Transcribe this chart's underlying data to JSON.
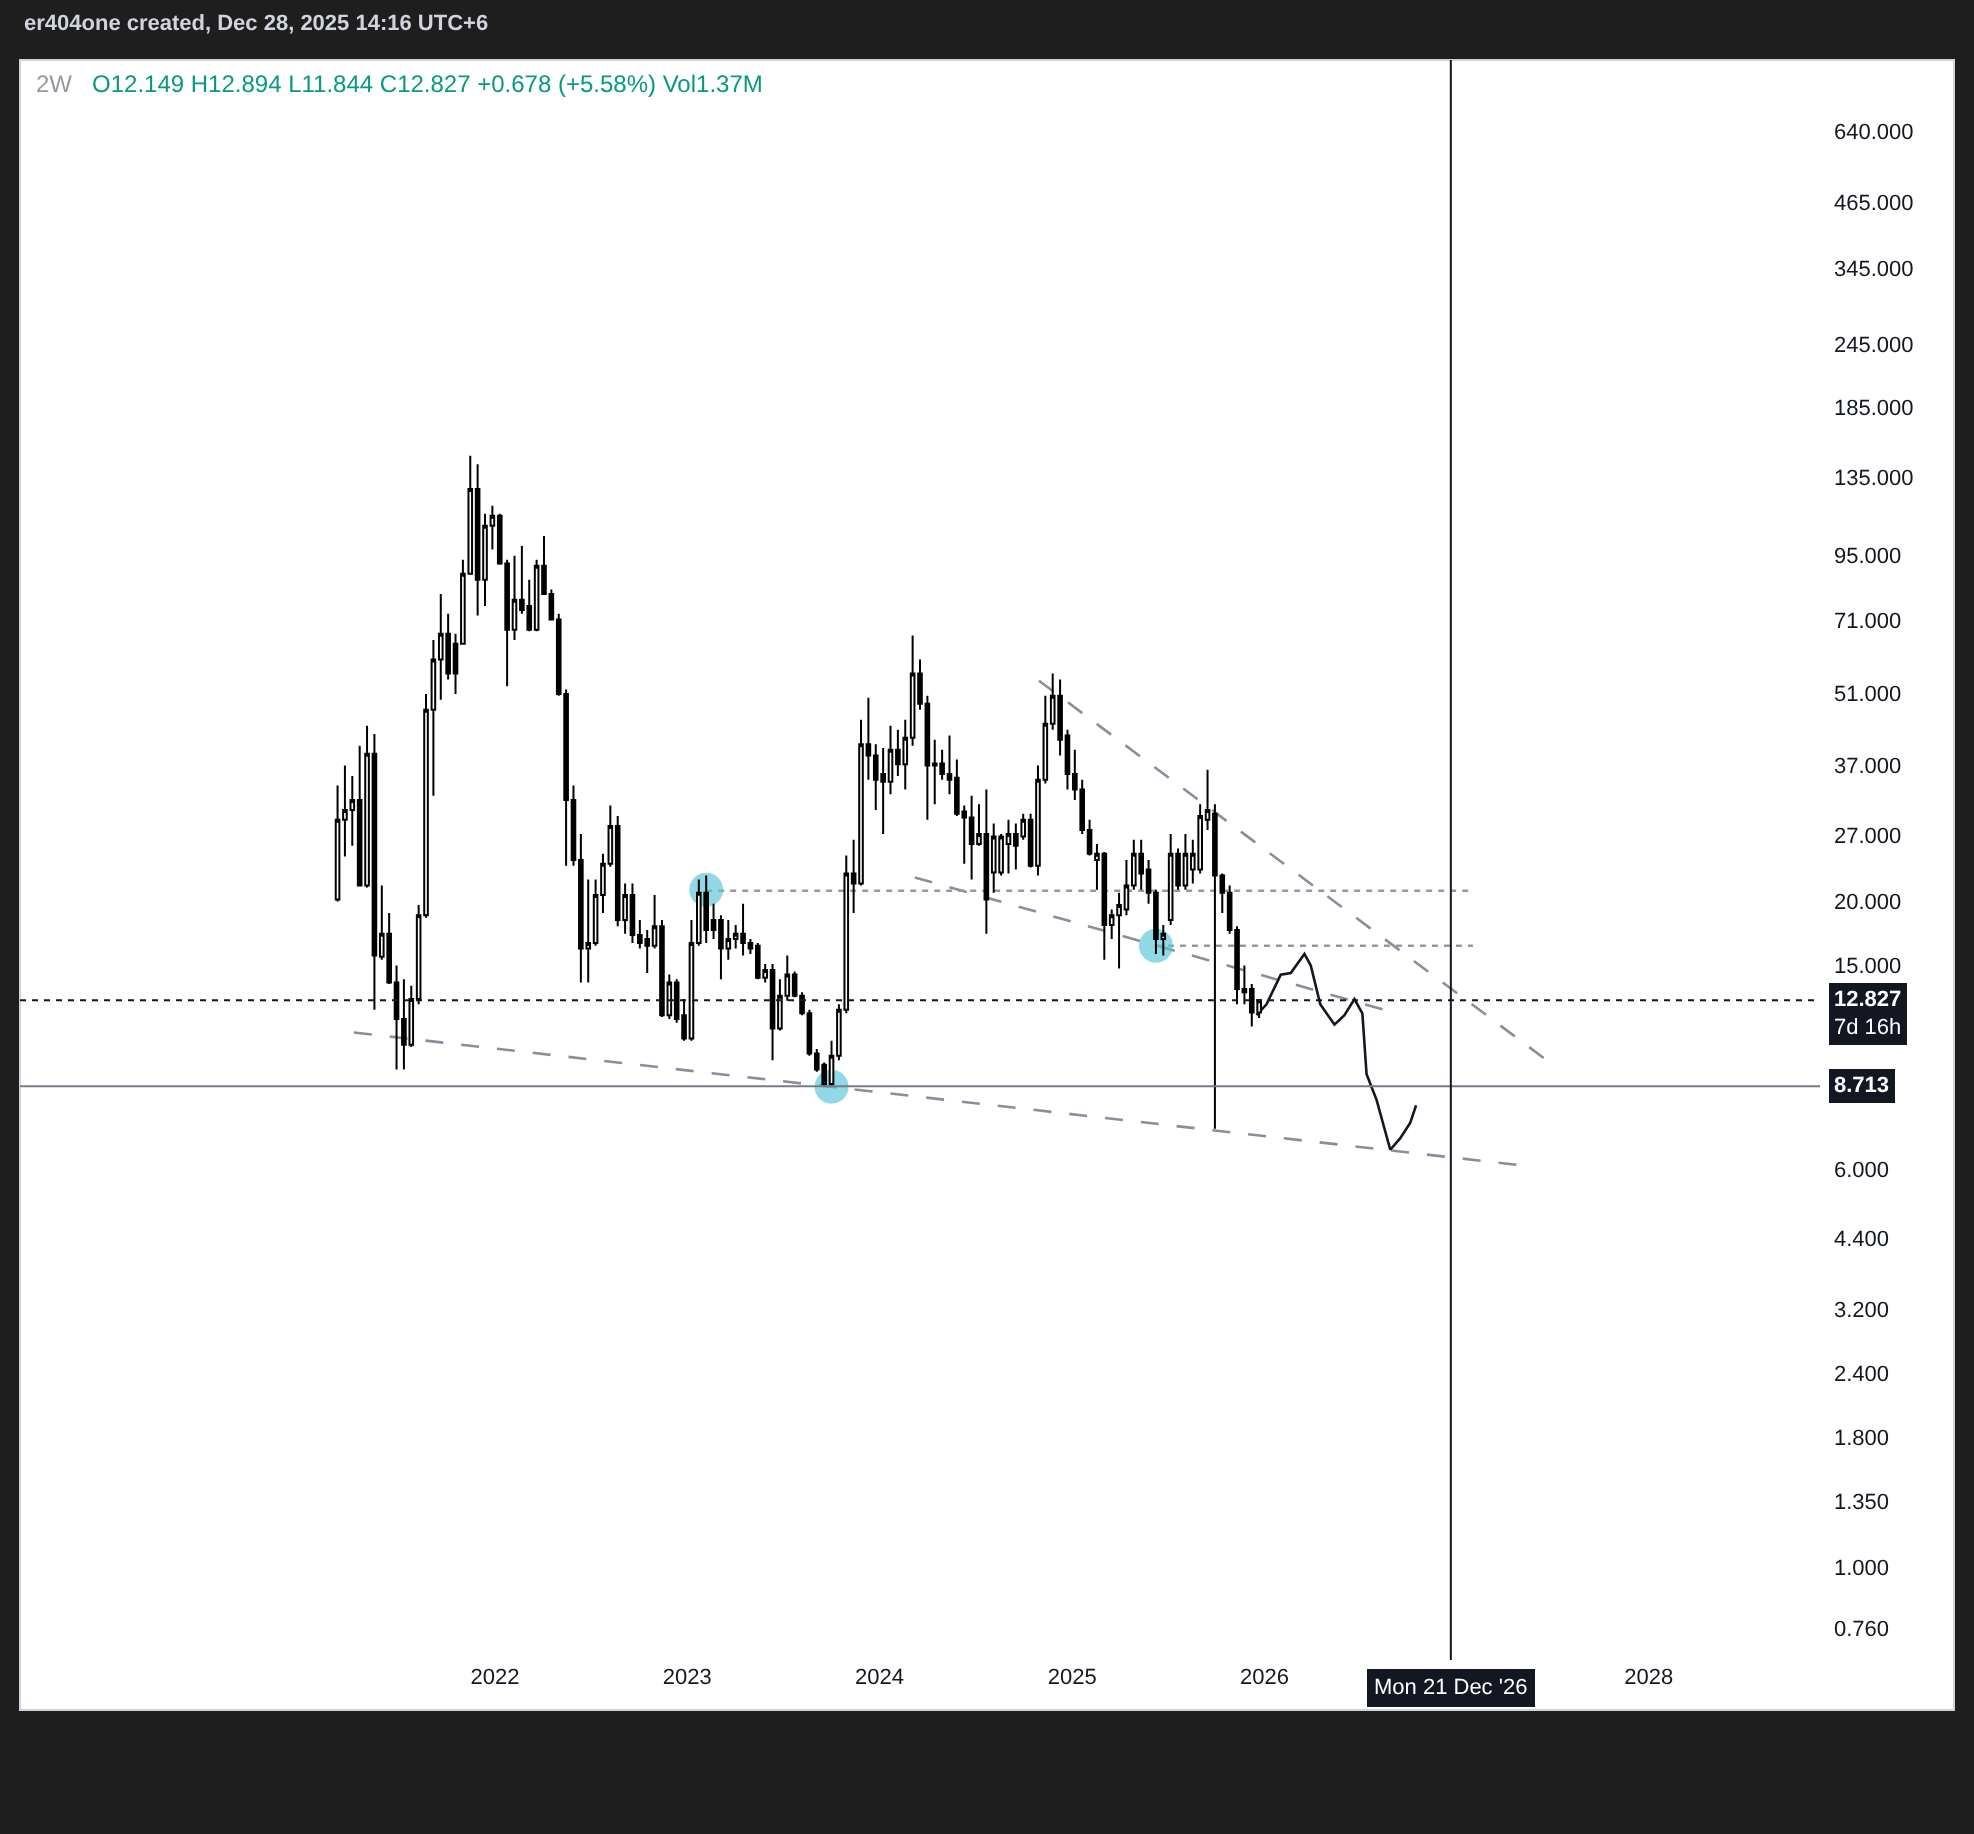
{
  "chart_data": {
    "type": "candlestick",
    "title": "2W",
    "subtitle": "O12.149 H12.894 L11.844 C12.827 +0.678 (+5.58%) Vol1.37M",
    "color": "#000000",
    "x": [
      "2021-03-08",
      "2021-03-22",
      "2021-04-05",
      "2021-04-19",
      "2021-05-03",
      "2021-05-17",
      "2021-05-31",
      "2021-06-14",
      "2021-06-28",
      "2021-07-12",
      "2021-07-26",
      "2021-08-09",
      "2021-08-23",
      "2021-09-06",
      "2021-09-20",
      "2021-10-04",
      "2021-10-18",
      "2021-11-01",
      "2021-11-15",
      "2021-11-29",
      "2021-12-13",
      "2021-12-27",
      "2022-01-10",
      "2022-01-24",
      "2022-02-07",
      "2022-02-21",
      "2022-03-07",
      "2022-03-21",
      "2022-04-04",
      "2022-04-18",
      "2022-05-02",
      "2022-05-16",
      "2022-05-30",
      "2022-06-13",
      "2022-06-27",
      "2022-07-11",
      "2022-07-25",
      "2022-08-08",
      "2022-08-22",
      "2022-09-05",
      "2022-09-19",
      "2022-10-03",
      "2022-10-17",
      "2022-10-31",
      "2022-11-14",
      "2022-11-28",
      "2022-12-12",
      "2022-12-26",
      "2023-01-09",
      "2023-01-23",
      "2023-02-06",
      "2023-02-20",
      "2023-03-06",
      "2023-03-20",
      "2023-04-03",
      "2023-04-17",
      "2023-05-01",
      "2023-05-15",
      "2023-05-29",
      "2023-06-12",
      "2023-06-26",
      "2023-07-10",
      "2023-07-24",
      "2023-08-07",
      "2023-08-21",
      "2023-09-04",
      "2023-09-18",
      "2023-10-02",
      "2023-10-16",
      "2023-10-30",
      "2023-11-13",
      "2023-11-27",
      "2023-12-11",
      "2023-12-25",
      "2024-01-08",
      "2024-01-22",
      "2024-02-05",
      "2024-02-19",
      "2024-03-04",
      "2024-03-18",
      "2024-04-01",
      "2024-04-15",
      "2024-04-29",
      "2024-05-13",
      "2024-05-27",
      "2024-06-10",
      "2024-06-24",
      "2024-07-08",
      "2024-07-22",
      "2024-08-05",
      "2024-08-19",
      "2024-09-02",
      "2024-09-16",
      "2024-09-30",
      "2024-10-14",
      "2024-10-28",
      "2024-11-11",
      "2024-11-25",
      "2024-12-09",
      "2024-12-23",
      "2025-01-06",
      "2025-01-20",
      "2025-02-03",
      "2025-02-17",
      "2025-03-03",
      "2025-03-17",
      "2025-03-31",
      "2025-04-14",
      "2025-04-28",
      "2025-05-12",
      "2025-05-26",
      "2025-06-09",
      "2025-06-23",
      "2025-07-07",
      "2025-07-21",
      "2025-08-04",
      "2025-08-18",
      "2025-09-01",
      "2025-09-15",
      "2025-09-29",
      "2025-10-13",
      "2025-10-27",
      "2025-11-10",
      "2025-11-24",
      "2025-12-08",
      "2025-12-22"
    ],
    "ohlc": [
      [
        20.2,
        33.7,
        20.0,
        28.9
      ],
      [
        28.9,
        36.9,
        24.5,
        30.2
      ],
      [
        30.2,
        35.2,
        25.7,
        31.6
      ],
      [
        31.6,
        40.3,
        21.4,
        21.5
      ],
      [
        21.5,
        44.1,
        21.3,
        38.9
      ],
      [
        38.9,
        42.5,
        12.3,
        15.7
      ],
      [
        15.6,
        21.5,
        15.4,
        17.3
      ],
      [
        17.3,
        19.0,
        13.8,
        13.9
      ],
      [
        13.9,
        15.0,
        9.4,
        11.8
      ],
      [
        11.8,
        14.1,
        9.4,
        10.5
      ],
      [
        10.5,
        13.7,
        10.4,
        12.9
      ],
      [
        12.9,
        19.7,
        12.6,
        18.8
      ],
      [
        18.8,
        50.9,
        18.6,
        47.4
      ],
      [
        47.4,
        64.9,
        32.2,
        59.4
      ],
      [
        59.4,
        79.8,
        49.6,
        66.7
      ],
      [
        66.7,
        73.0,
        54.3,
        55.8
      ],
      [
        63.8,
        66.7,
        50.9,
        55.8
      ],
      [
        63.8,
        93.1,
        63.5,
        87.4
      ],
      [
        87.4,
        148.6,
        87.0,
        128
      ],
      [
        128,
        143,
        72.4,
        85.1
      ],
      [
        85.1,
        114.5,
        75.6,
        108.4
      ],
      [
        108.4,
        118.6,
        97.4,
        113.4
      ],
      [
        113.4,
        114.5,
        91.0,
        91.5
      ],
      [
        91.5,
        93.1,
        52.7,
        67.9
      ],
      [
        67.9,
        94.8,
        64.9,
        77.7
      ],
      [
        77.7,
        99.0,
        73.0,
        74.2
      ],
      [
        75.6,
        85.1,
        67.5,
        67.9
      ],
      [
        67.9,
        93.1,
        67.5,
        90.6
      ],
      [
        90.6,
        103.6,
        79.5,
        79.8
      ],
      [
        79.8,
        81.4,
        70.8,
        71.1
      ],
      [
        71.1,
        73.0,
        50.5,
        50.9
      ],
      [
        50.9,
        51.9,
        23.5,
        31.6
      ],
      [
        31.6,
        33.7,
        23.5,
        24.1
      ],
      [
        24.1,
        27.1,
        13.9,
        16.2
      ],
      [
        16.2,
        22.1,
        13.9,
        16.6
      ],
      [
        16.6,
        22.1,
        16.4,
        20.6
      ],
      [
        20.6,
        24.8,
        19.0,
        23.7
      ],
      [
        23.7,
        30.8,
        23.4,
        28.1
      ],
      [
        28.1,
        29.4,
        17.9,
        18.4
      ],
      [
        18.4,
        21.7,
        17.3,
        20.6
      ],
      [
        20.6,
        21.7,
        16.6,
        17.2
      ],
      [
        17.2,
        18.4,
        16.2,
        16.6
      ],
      [
        16.9,
        17.6,
        14.5,
        16.4
      ],
      [
        16.4,
        20.6,
        16.2,
        17.9
      ],
      [
        17.9,
        18.4,
        11.9,
        12.0
      ],
      [
        12.0,
        14.4,
        11.8,
        13.9
      ],
      [
        13.9,
        14.1,
        11.6,
        11.8
      ],
      [
        12.0,
        12.9,
        10.7,
        10.8
      ],
      [
        10.8,
        18.4,
        10.7,
        16.6
      ],
      [
        16.6,
        22.1,
        16.4,
        20.8
      ],
      [
        20.8,
        22.5,
        16.6,
        17.6
      ],
      [
        18.4,
        19.8,
        16.9,
        17.6
      ],
      [
        18.4,
        18.8,
        14.1,
        16.2
      ],
      [
        16.2,
        18.4,
        15.4,
        16.9
      ],
      [
        16.9,
        18.0,
        16.2,
        17.3
      ],
      [
        17.3,
        19.8,
        15.7,
        16.6
      ],
      [
        16.6,
        16.9,
        15.8,
        16.2
      ],
      [
        16.4,
        16.6,
        14.1,
        14.2
      ],
      [
        14.2,
        15.1,
        13.9,
        14.7
      ],
      [
        14.7,
        15.1,
        9.8,
        11.3
      ],
      [
        11.3,
        14.1,
        11.2,
        13.1
      ],
      [
        13.1,
        15.7,
        12.8,
        14.4
      ],
      [
        14.4,
        14.6,
        13.0,
        13.1
      ],
      [
        13.1,
        13.3,
        12.0,
        12.1
      ],
      [
        12.1,
        12.3,
        10.0,
        10.1
      ],
      [
        10.1,
        10.3,
        9.3,
        9.4
      ],
      [
        9.6,
        9.7,
        8.7,
        8.8
      ],
      [
        8.8,
        10.7,
        8.7,
        10.0
      ],
      [
        10.0,
        12.6,
        9.8,
        12.3
      ],
      [
        12.3,
        24.6,
        12.1,
        22.7
      ],
      [
        22.7,
        26.4,
        19.0,
        21.7
      ],
      [
        21.7,
        45.3,
        21.5,
        40.6
      ],
      [
        40.6,
        50.0,
        34.6,
        38.6
      ],
      [
        38.6,
        40.6,
        30.2,
        34.6
      ],
      [
        35.5,
        39.9,
        27.1,
        34.3
      ],
      [
        34.3,
        44.1,
        32.4,
        39.6
      ],
      [
        39.6,
        43.3,
        35.2,
        37.1
      ],
      [
        37.1,
        45.3,
        33.1,
        41.8
      ],
      [
        41.8,
        66.2,
        40.3,
        55.8
      ],
      [
        55.8,
        59.4,
        47.4,
        48.7
      ],
      [
        48.7,
        50.5,
        28.9,
        36.9
      ],
      [
        37.2,
        41.4,
        31.0,
        36.9
      ],
      [
        37.2,
        39.6,
        34.6,
        35.5
      ],
      [
        35.5,
        42.2,
        32.4,
        34.6
      ],
      [
        34.9,
        37.9,
        29.4,
        29.7
      ],
      [
        30.0,
        30.8,
        23.7,
        29.2
      ],
      [
        29.2,
        32.2,
        22.1,
        25.9
      ],
      [
        25.9,
        31.0,
        25.7,
        27.1
      ],
      [
        27.1,
        33.1,
        17.3,
        20.2
      ],
      [
        22.8,
        28.4,
        20.8,
        26.8
      ],
      [
        22.8,
        27.1,
        22.5,
        26.8
      ],
      [
        25.9,
        28.9,
        22.7,
        27.1
      ],
      [
        27.1,
        28.4,
        23.1,
        25.7
      ],
      [
        26.8,
        29.7,
        26.4,
        28.9
      ],
      [
        28.9,
        29.7,
        23.3,
        23.5
      ],
      [
        23.5,
        36.9,
        22.5,
        34.6
      ],
      [
        34.6,
        50.5,
        34.0,
        44.5
      ],
      [
        44.5,
        55.8,
        43.3,
        50.5
      ],
      [
        50.5,
        54.3,
        38.6,
        41.4
      ],
      [
        42.2,
        43.3,
        33.1,
        35.5
      ],
      [
        35.5,
        39.6,
        31.6,
        33.1
      ],
      [
        33.1,
        34.6,
        27.1,
        27.6
      ],
      [
        27.6,
        28.9,
        24.6,
        24.8
      ],
      [
        24.1,
        25.9,
        21.1,
        24.8
      ],
      [
        24.8,
        25.0,
        15.4,
        18.0
      ],
      [
        18.0,
        19.3,
        16.9,
        18.8
      ],
      [
        18.8,
        20.8,
        14.8,
        19.7
      ],
      [
        19.3,
        24.1,
        18.8,
        21.5
      ],
      [
        21.5,
        26.4,
        21.1,
        24.8
      ],
      [
        24.8,
        26.4,
        21.1,
        22.7
      ],
      [
        23.1,
        24.1,
        19.8,
        20.8
      ],
      [
        20.8,
        21.1,
        15.8,
        16.9
      ],
      [
        16.9,
        18.0,
        15.7,
        17.3
      ],
      [
        18.4,
        27.1,
        18.0,
        24.8
      ],
      [
        24.8,
        25.4,
        21.1,
        21.5
      ],
      [
        21.5,
        27.1,
        21.1,
        24.8
      ],
      [
        23.1,
        26.4,
        21.7,
        24.8
      ],
      [
        23.1,
        31.0,
        22.7,
        29.4
      ],
      [
        28.9,
        36.2,
        27.6,
        30.2
      ],
      [
        29.7,
        31.0,
        7.2,
        22.5
      ],
      [
        22.5,
        22.7,
        19.0,
        20.8
      ],
      [
        20.8,
        21.5,
        17.3,
        17.6
      ],
      [
        17.6,
        17.9,
        12.6,
        13.5
      ],
      [
        13.3,
        15.0,
        12.6,
        13.5
      ],
      [
        13.5,
        13.8,
        11.4,
        12.149
      ],
      [
        12.149,
        12.894,
        11.844,
        12.827
      ]
    ],
    "series": [
      {
        "type": "line",
        "color": "#8a8e99",
        "line_style": "dashed",
        "x": [
          "2021-04-08",
          "2027-05-08"
        ],
        "values": [
          11.1,
          6.1
        ]
      },
      {
        "type": "line",
        "color": "#8a8e99",
        "line_style": "dashed",
        "x": [
          "2024-03-08",
          "2026-08-28"
        ],
        "values": [
          22.3,
          12.2
        ]
      },
      {
        "type": "line",
        "color": "#8a8e99",
        "line_style": "dashed",
        "x": [
          "2024-10-30",
          "2027-06-21"
        ],
        "values": [
          54,
          9.8
        ]
      },
      {
        "type": "line",
        "color": "#9598a1",
        "line_style": "dotted",
        "x": [
          "2023-02-06",
          "2027-02-01"
        ],
        "values": [
          21.0,
          21.0
        ]
      },
      {
        "type": "line",
        "color": "#9598a1",
        "line_style": "dotted",
        "x": [
          "2025-06-09",
          "2027-02-01"
        ],
        "values": [
          16.4,
          16.4
        ]
      },
      {
        "type": "line",
        "color": "#131722",
        "line_style": "solid",
        "x": [
          "2025-12-17",
          "2026-01-05",
          "2026-02-01",
          "2026-02-20",
          "2026-03-18",
          "2026-03-30",
          "2026-04-17",
          "2026-05-14",
          "2026-06-02",
          "2026-06-21",
          "2026-07-06",
          "2026-07-14",
          "2026-08-02",
          "2026-08-28",
          "2026-09-16",
          "2026-10-05",
          "2026-10-16"
        ],
        "values": [
          12.0,
          12.6,
          14.4,
          14.5,
          15.8,
          15.0,
          12.6,
          11.5,
          12.0,
          12.9,
          12.1,
          9.2,
          8.2,
          6.55,
          6.9,
          7.4,
          8.0
        ]
      },
      {
        "type": "scatter",
        "color": "#56c4d6",
        "marker": "circle",
        "x": [
          "2023-02-06",
          "2023-10-02",
          "2025-06-09"
        ],
        "values": [
          21.1,
          8.7,
          16.4
        ]
      }
    ],
    "xlim": [
      "2019-07-14",
      "2028-11-21"
    ],
    "xticks": [
      {
        "value": "2022-01-01",
        "label": "2022"
      },
      {
        "value": "2023-01-01",
        "label": "2023"
      },
      {
        "value": "2024-01-01",
        "label": "2024"
      },
      {
        "value": "2025-01-01",
        "label": "2025"
      },
      {
        "value": "2026-01-01",
        "label": "2026"
      },
      {
        "value": "2028-01-01",
        "label": "2028"
      }
    ],
    "log": true,
    "ylim": [
      0.66,
      881
    ],
    "yticks": [
      {
        "value": 0.76,
        "label": "0.760"
      },
      {
        "value": 1,
        "label": "1.000"
      },
      {
        "value": 1.35,
        "label": "1.350"
      },
      {
        "value": 1.8,
        "label": "1.800"
      },
      {
        "value": 2.4,
        "label": "2.400"
      },
      {
        "value": 3.2,
        "label": "3.200"
      },
      {
        "value": 4.4,
        "label": "4.400"
      },
      {
        "value": 6,
        "label": "6.000"
      },
      {
        "value": 15,
        "label": "15.000"
      },
      {
        "value": 20,
        "label": "20.000"
      },
      {
        "value": 27,
        "label": "27.000"
      },
      {
        "value": 37,
        "label": "37.000"
      },
      {
        "value": 51,
        "label": "51.000"
      },
      {
        "value": 71,
        "label": "71.000"
      },
      {
        "value": 95,
        "label": "95.000"
      },
      {
        "value": 135,
        "label": "135.000"
      },
      {
        "value": 185,
        "label": "185.000"
      },
      {
        "value": 245,
        "label": "245.000"
      },
      {
        "value": 345,
        "label": "345.000"
      },
      {
        "value": 465,
        "label": "465.000"
      },
      {
        "value": 640,
        "label": "640.000"
      }
    ],
    "ref_lines": [
      {
        "axis": "y",
        "value": 12.827,
        "label": "12.827",
        "color": "#131722",
        "line_style": "dotted"
      },
      {
        "axis": "y",
        "value": 8.713,
        "label": "8.713",
        "color": "#787b86",
        "line_style": "solid"
      },
      {
        "axis": "x",
        "value": "2026-12-21",
        "label": "Mon 21 Dec '26",
        "color": "#131722",
        "line_style": "solid"
      }
    ],
    "annotations": [
      "er404one created, Dec 28, 2025 14:16 UTC+6",
      "7d 16h"
    ]
  }
}
